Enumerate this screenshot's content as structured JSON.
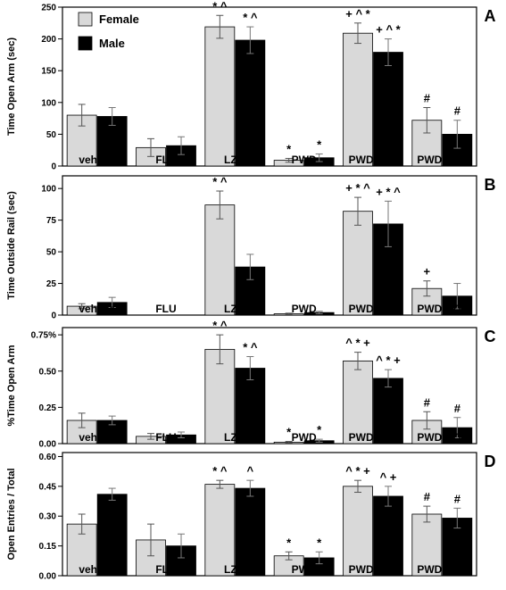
{
  "chart_data": [
    {
      "type": "bar",
      "panel": "A",
      "ylabel": "Time Open Arm (sec)",
      "ylim": [
        0,
        250
      ],
      "yticks": [
        0,
        50,
        100,
        150,
        200,
        250
      ],
      "categories": [
        "vehicle",
        "FLU",
        "LZM",
        "PWD",
        "PWD/FLU",
        "PWD/LZM"
      ],
      "series": [
        {
          "name": "Female",
          "values": [
            80,
            29,
            219,
            9,
            209,
            72
          ],
          "errors": [
            17,
            14,
            18,
            3,
            16,
            20
          ],
          "annotations": [
            "",
            "",
            "* ^",
            "*",
            "+ ^ *",
            "#"
          ]
        },
        {
          "name": "Male",
          "values": [
            78,
            32,
            198,
            13,
            179,
            50
          ],
          "errors": [
            14,
            14,
            21,
            6,
            21,
            22
          ],
          "annotations": [
            "",
            "",
            "* ^",
            "*",
            "+ ^ *",
            "#"
          ]
        }
      ],
      "legend": [
        "Female",
        "Male"
      ]
    },
    {
      "type": "bar",
      "panel": "B",
      "ylabel": "Time Outside Rail (sec)",
      "ylim": [
        0,
        110
      ],
      "yticks": [
        0,
        25,
        50,
        75,
        100
      ],
      "categories": [
        "vehicle",
        "FLU",
        "LZM",
        "PWD",
        "PWD/FLU",
        "PWD/LZM"
      ],
      "series": [
        {
          "name": "Female",
          "values": [
            7,
            0,
            87,
            1,
            82,
            21
          ],
          "errors": [
            2,
            0,
            11,
            0.5,
            11,
            6
          ],
          "annotations": [
            "",
            "",
            "* ^",
            "",
            "+ * ^",
            "+"
          ]
        },
        {
          "name": "Male",
          "values": [
            10,
            0,
            38,
            2,
            72,
            15
          ],
          "errors": [
            4,
            0,
            10,
            1,
            18,
            10
          ],
          "annotations": [
            "",
            "",
            "",
            "",
            "+ * ^",
            ""
          ]
        }
      ]
    },
    {
      "type": "bar",
      "panel": "C",
      "ylabel": "%Time Open Arm",
      "ylim": [
        0,
        0.8
      ],
      "yticks": [
        0.0,
        0.25,
        0.5,
        0.75
      ],
      "ytick_labels": [
        "0.00",
        "0.25",
        "0.50",
        "0.75%"
      ],
      "categories": [
        "vehicle",
        "FLU",
        "LZM",
        "PWD",
        "PWD/FLU",
        "PWD/LZM"
      ],
      "series": [
        {
          "name": "Female",
          "values": [
            0.16,
            0.05,
            0.65,
            0.01,
            0.57,
            0.16
          ],
          "errors": [
            0.05,
            0.02,
            0.1,
            0.005,
            0.06,
            0.06
          ],
          "annotations": [
            "",
            "",
            "* ^",
            "*",
            "^ * +",
            "#"
          ]
        },
        {
          "name": "Male",
          "values": [
            0.16,
            0.06,
            0.52,
            0.02,
            0.45,
            0.11
          ],
          "errors": [
            0.03,
            0.02,
            0.08,
            0.01,
            0.06,
            0.07
          ],
          "annotations": [
            "",
            "",
            "* ^",
            "*",
            "^ * +",
            "#"
          ]
        }
      ]
    },
    {
      "type": "bar",
      "panel": "D",
      "ylabel": "Open Entries / Total",
      "ylim": [
        0,
        0.62
      ],
      "yticks": [
        0.0,
        0.15,
        0.3,
        0.45,
        0.6
      ],
      "ytick_labels": [
        "0.00",
        "0.15",
        "0.30",
        "0.45",
        "0.60"
      ],
      "categories": [
        "vehicle",
        "FLU",
        "LZM",
        "PWD",
        "PWD/FLU",
        "PWD/LZM"
      ],
      "series": [
        {
          "name": "Female",
          "values": [
            0.26,
            0.18,
            0.46,
            0.1,
            0.45,
            0.31
          ],
          "errors": [
            0.05,
            0.08,
            0.02,
            0.02,
            0.03,
            0.04
          ],
          "annotations": [
            "",
            "",
            "* ^",
            "*",
            "^ * +",
            "#"
          ]
        },
        {
          "name": "Male",
          "values": [
            0.41,
            0.15,
            0.44,
            0.09,
            0.4,
            0.29
          ],
          "errors": [
            0.03,
            0.06,
            0.04,
            0.03,
            0.05,
            0.05
          ],
          "annotations": [
            "",
            "",
            "^",
            "*",
            "^ +",
            "#"
          ]
        }
      ]
    }
  ],
  "colors": {
    "female": "#d9d9d9",
    "male": "#000000"
  }
}
